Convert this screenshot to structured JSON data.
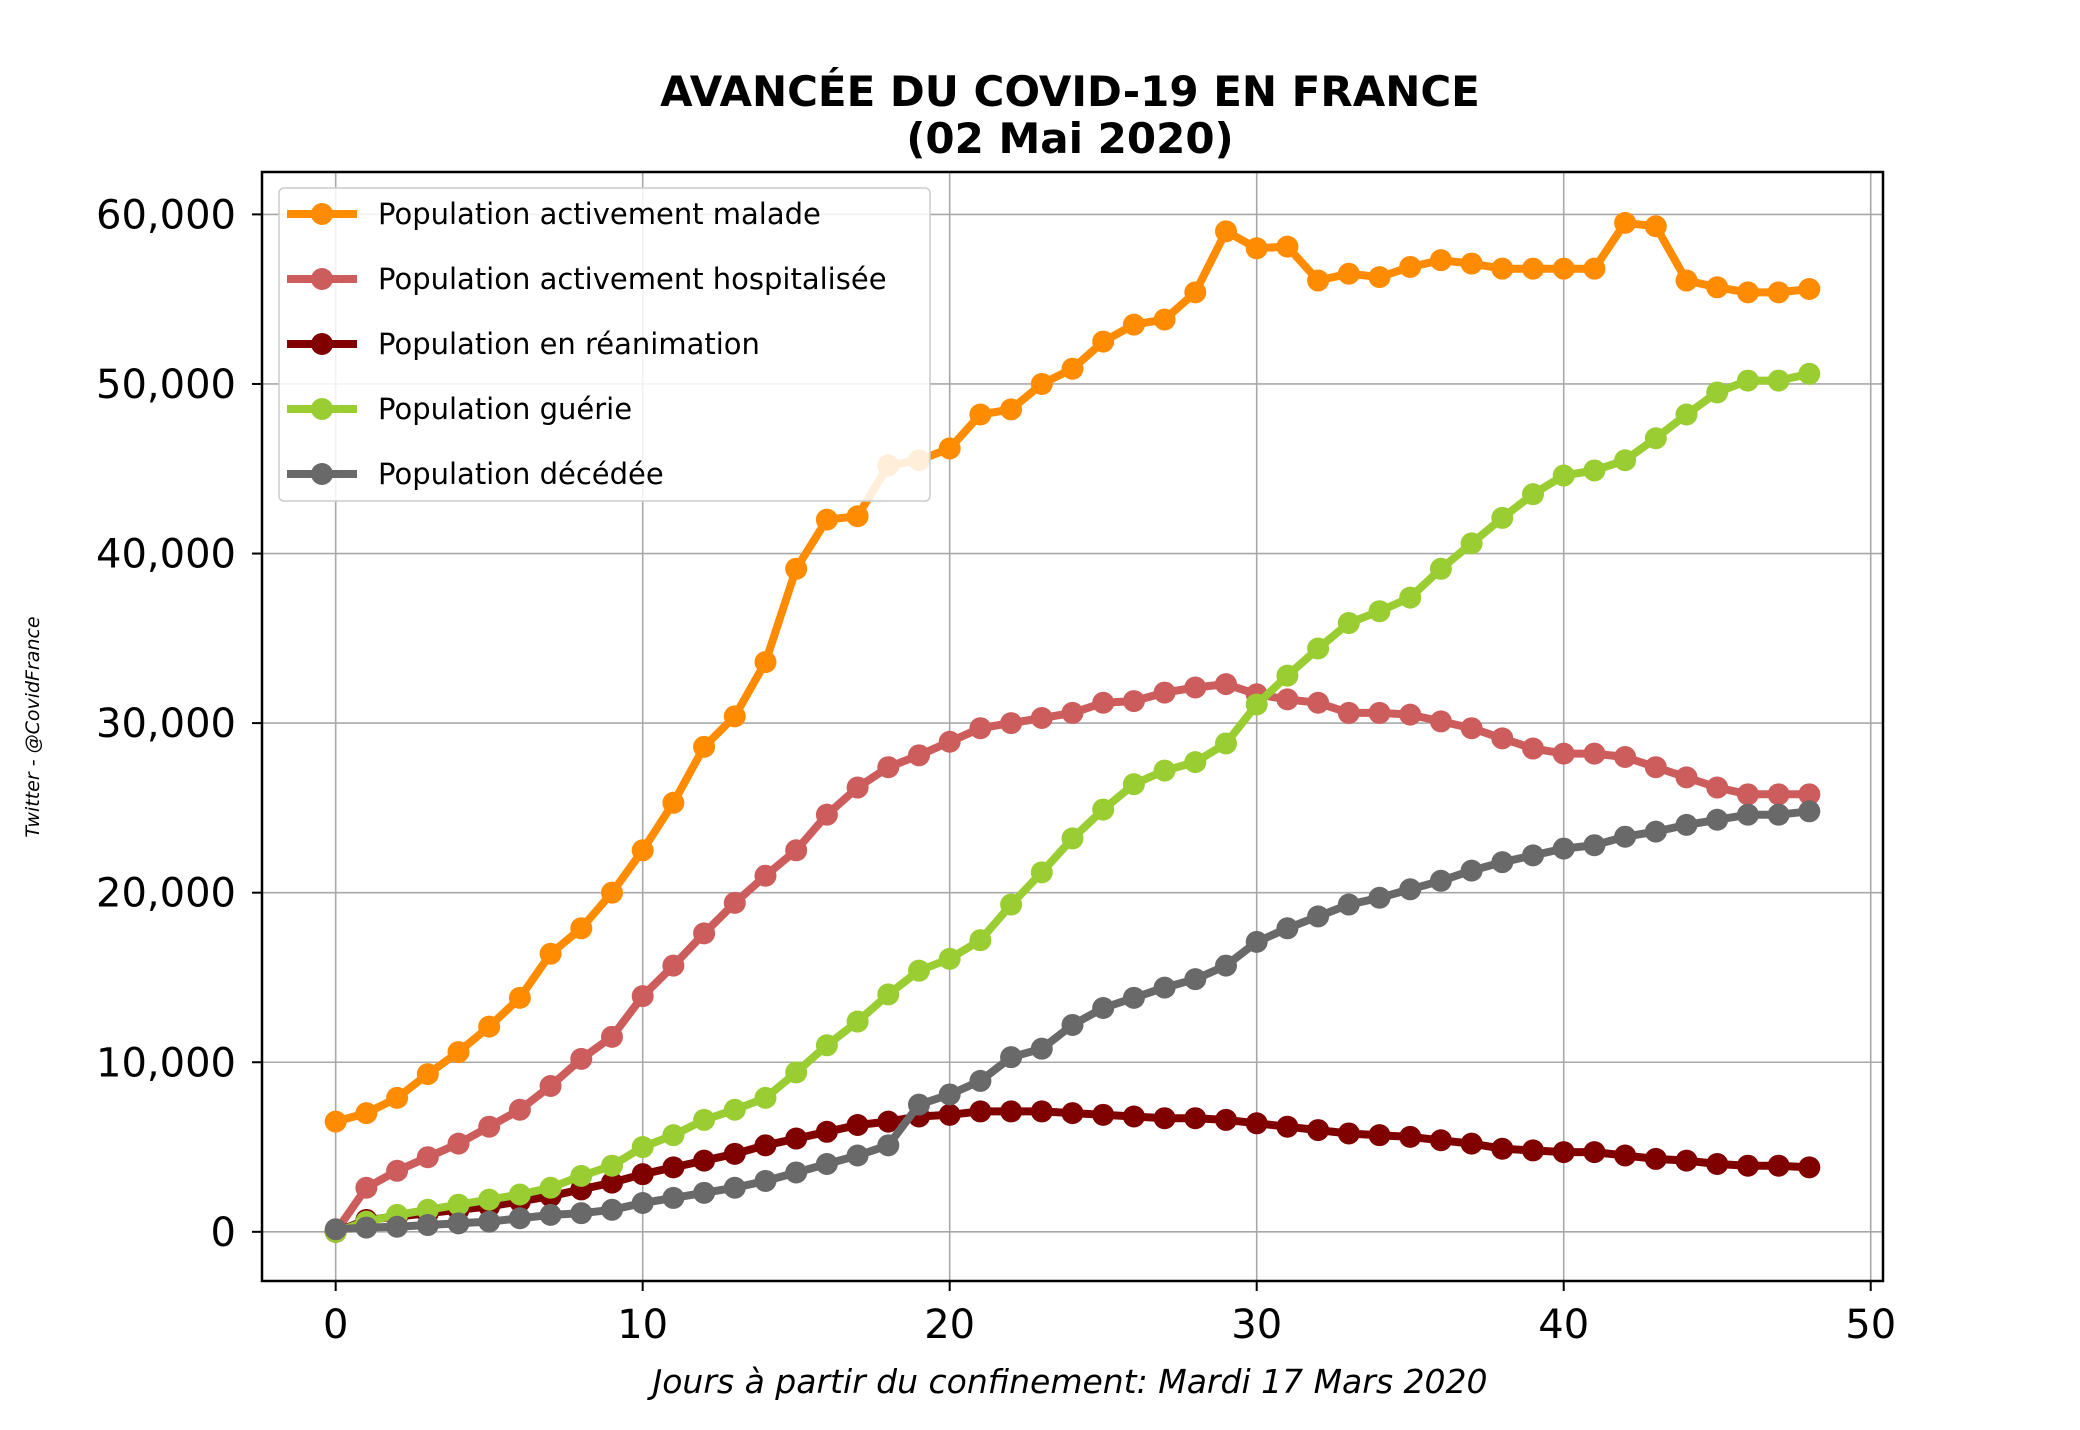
{
  "chart_data": {
    "type": "line",
    "title": "AVANCÉE DU COVID-19 EN FRANCE",
    "subtitle": "(02 Mai 2020)",
    "xlabel": "Jours à partir du confinement: Mardi 17 Mars 2020",
    "ylabel": "",
    "side_label": "Twitter - @CovidFrance",
    "xlim": [
      -2.4,
      50.4
    ],
    "ylim": [
      -2900,
      62500
    ],
    "x_ticks": [
      0,
      10,
      20,
      30,
      40,
      50
    ],
    "x_tick_labels": [
      "0",
      "10",
      "20",
      "30",
      "40",
      "50"
    ],
    "y_ticks": [
      0,
      10000,
      20000,
      30000,
      40000,
      50000,
      60000
    ],
    "y_tick_labels": [
      "0",
      "10,000",
      "20,000",
      "30,000",
      "40,000",
      "50,000",
      "60,000"
    ],
    "grid": true,
    "legend_position": "top-left",
    "x": [
      0,
      1,
      2,
      3,
      4,
      5,
      6,
      7,
      8,
      9,
      10,
      11,
      12,
      13,
      14,
      15,
      16,
      17,
      18,
      19,
      20,
      21,
      22,
      23,
      24,
      25,
      26,
      27,
      28,
      29,
      30,
      31,
      32,
      33,
      34,
      35,
      36,
      37,
      38,
      39,
      40,
      41,
      42,
      43,
      44,
      45,
      46,
      47,
      48
    ],
    "series": [
      {
        "name": "Population activement malade",
        "color": "#ff8c00",
        "values": [
          6500,
          7000,
          7900,
          9300,
          10600,
          12100,
          13800,
          16400,
          17900,
          20000,
          22500,
          25300,
          28600,
          30400,
          33600,
          39100,
          42000,
          42200,
          45200,
          45500,
          46200,
          48200,
          48500,
          50000,
          50900,
          52500,
          53500,
          53800,
          55400,
          59000,
          58000,
          58100,
          56100,
          56500,
          56300,
          56900,
          57300,
          57100,
          56800,
          56800,
          56800,
          56800,
          59500,
          59300,
          56100,
          55700,
          55400,
          55400,
          55600
        ]
      },
      {
        "name": "Population activement hospitalisée",
        "color": "#cd5c5c",
        "values": [
          0,
          2600,
          3600,
          4400,
          5200,
          6200,
          7200,
          8600,
          10200,
          11500,
          13900,
          15700,
          17600,
          19400,
          21000,
          22500,
          24600,
          26200,
          27400,
          28100,
          28900,
          29700,
          30000,
          30300,
          30600,
          31200,
          31300,
          31800,
          32100,
          32300,
          31700,
          31400,
          31200,
          30600,
          30600,
          30500,
          30100,
          29700,
          29100,
          28500,
          28200,
          28200,
          28000,
          27400,
          26800,
          26200,
          25800,
          25800,
          25800
        ]
      },
      {
        "name": "Population en réanimation",
        "color": "#800000",
        "values": [
          0,
          700,
          900,
          1100,
          1300,
          1500,
          1800,
          2100,
          2500,
          2900,
          3400,
          3800,
          4200,
          4600,
          5100,
          5500,
          5900,
          6300,
          6500,
          6800,
          6900,
          7100,
          7100,
          7100,
          7000,
          6900,
          6800,
          6700,
          6700,
          6600,
          6400,
          6200,
          6000,
          5800,
          5700,
          5600,
          5400,
          5200,
          4900,
          4800,
          4700,
          4700,
          4500,
          4300,
          4200,
          4000,
          3900,
          3900,
          3800
        ]
      },
      {
        "name": "Population guérie",
        "color": "#9acd32",
        "values": [
          0,
          600,
          1000,
          1300,
          1600,
          1900,
          2200,
          2600,
          3300,
          3900,
          5000,
          5700,
          6600,
          7200,
          7900,
          9400,
          11000,
          12400,
          14000,
          15400,
          16100,
          17200,
          19300,
          21200,
          23200,
          24900,
          26400,
          27200,
          27700,
          28800,
          31100,
          32800,
          34400,
          35900,
          36600,
          37400,
          39100,
          40600,
          42100,
          43500,
          44600,
          44900,
          45500,
          46800,
          48200,
          49500,
          50200,
          50200,
          50600
        ]
      },
      {
        "name": "Population décédée",
        "color": "#696969",
        "values": [
          150,
          250,
          300,
          400,
          500,
          600,
          800,
          1000,
          1100,
          1300,
          1700,
          2000,
          2300,
          2600,
          3000,
          3500,
          4000,
          4500,
          5100,
          7500,
          8100,
          8900,
          10300,
          10800,
          12200,
          13200,
          13800,
          14400,
          14900,
          15700,
          17100,
          17900,
          18600,
          19300,
          19700,
          20200,
          20700,
          21300,
          21800,
          22200,
          22600,
          22800,
          23300,
          23600,
          24000,
          24300,
          24600,
          24600,
          24800
        ]
      }
    ]
  }
}
